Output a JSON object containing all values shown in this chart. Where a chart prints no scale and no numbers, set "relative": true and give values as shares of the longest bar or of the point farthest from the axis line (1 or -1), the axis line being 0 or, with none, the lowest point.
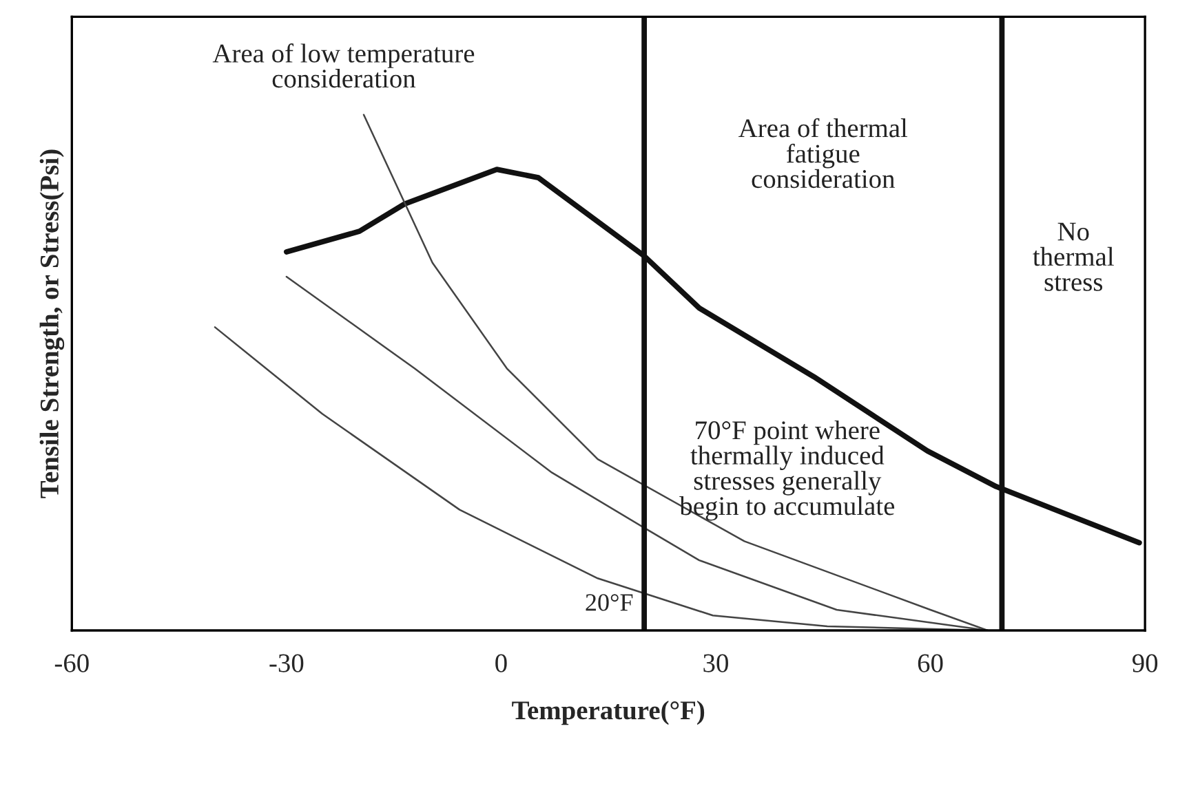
{
  "chart_data": {
    "type": "line",
    "relative": true,
    "xlabel": "Temperature(°F)",
    "ylabel": "Tensile Strength, or Stress(Psi)",
    "xlim": [
      -60,
      90
    ],
    "xticks": [
      -60,
      -30,
      0,
      30,
      60,
      90
    ],
    "grid": false,
    "legend": false,
    "marker": "none",
    "line_style": "solid",
    "series": [
      {
        "color": "#111111",
        "x": [
          -30,
          -19.8,
          -13.5,
          -0.6,
          5.2,
          20,
          27.7,
          43.7,
          59.6,
          69.2,
          89.2
        ],
        "values": [
          0.734,
          0.774,
          0.827,
          0.894,
          0.878,
          0.726,
          0.625,
          0.492,
          0.348,
          0.279,
          0.17
        ]
      },
      {
        "color": "#444444",
        "x": [
          -19.2,
          -9.6,
          0.8,
          13.5,
          34,
          60,
          68
        ],
        "values": [
          1.0,
          0.713,
          0.508,
          0.332,
          0.173,
          0.04,
          0
        ]
      },
      {
        "color": "#444444",
        "x": [
          -30,
          -12.1,
          7.1,
          20,
          27.7,
          46.9,
          68
        ],
        "values": [
          0.686,
          0.508,
          0.306,
          0.199,
          0.136,
          0.04,
          0
        ]
      },
      {
        "color": "#444444",
        "x": [
          -40,
          -25,
          -5.8,
          13.5,
          29.6,
          45.6,
          68
        ],
        "values": [
          0.588,
          0.42,
          0.234,
          0.101,
          0.029,
          0.008,
          0
        ]
      }
    ],
    "ref_lines": [
      {
        "axis": "x",
        "value": 20,
        "label": "20°F",
        "color": "#111111"
      },
      {
        "axis": "x",
        "value": 70,
        "label": null,
        "color": "#111111"
      }
    ],
    "annotations": [
      "Area of low temperature\nconsideration",
      "Area of thermal\nfatigue\nconsideration",
      "No\nthermal\nstress",
      "70°F point where\nthermally induced\nstresses generally\nbegin to accumulate"
    ]
  }
}
